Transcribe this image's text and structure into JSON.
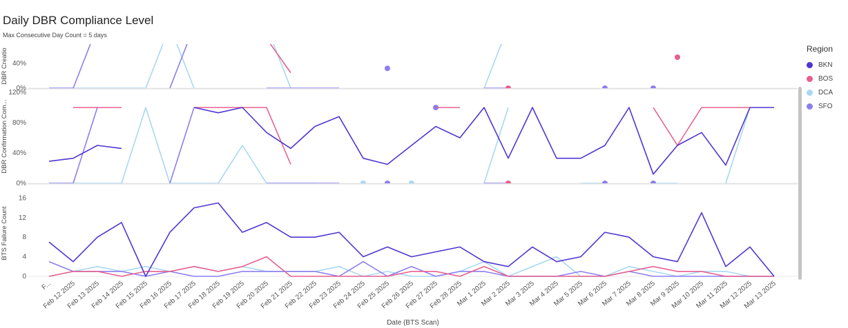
{
  "header": {
    "title": "Daily DBR Compliance Level",
    "subtitle": "Max Consecutive Day Count = 5 days"
  },
  "legend": {
    "title": "Region",
    "items": [
      {
        "label": "BKN",
        "color": "#4f35d2"
      },
      {
        "label": "BOS",
        "color": "#e75f8d"
      },
      {
        "label": "DCA",
        "color": "#a7d7f5"
      },
      {
        "label": "SFO",
        "color": "#8b7ef0"
      }
    ]
  },
  "x_axis": {
    "label": "Date (BTS Scan)",
    "ticks": [
      "F...",
      "Feb 12 2025",
      "Feb 13 2025",
      "Feb 14 2025",
      "Feb 15 2025",
      "Feb 16 2025",
      "Feb 17 2025",
      "Feb 18 2025",
      "Feb 19 2025",
      "Feb 20 2025",
      "Feb 21 2025",
      "Feb 22 2025",
      "Feb 23 2025",
      "Feb 24 2025",
      "Feb 25 2025",
      "Feb 26 2025",
      "Feb 27 2025",
      "Feb 28 2025",
      "Mar 1 2025",
      "Mar 2 2025",
      "Mar 3 2025",
      "Mar 4 2025",
      "Mar 5 2025",
      "Mar 6 2025",
      "Mar 7 2025",
      "Mar 8 2025",
      "Mar 9 2025",
      "Mar 10 2025",
      "Mar 11 2025",
      "Mar 12 2025",
      "Mar 13 2025"
    ]
  },
  "chart_data": [
    {
      "type": "line",
      "ylabel": "DBR Creatio",
      "yticks": [
        "0%",
        "40%"
      ],
      "ylim": [
        0,
        100
      ],
      "series": [
        {
          "name": "BKN",
          "values": [
            null,
            null,
            null,
            null,
            null,
            null,
            null,
            null,
            null,
            null,
            null,
            null,
            null,
            null,
            null,
            null,
            null,
            null,
            null,
            null,
            null,
            null,
            null,
            null,
            null,
            null,
            null,
            null,
            null,
            null,
            null
          ]
        },
        {
          "name": "BOS",
          "values": [
            null,
            null,
            null,
            null,
            null,
            null,
            null,
            null,
            null,
            80,
            25,
            null,
            null,
            null,
            null,
            null,
            null,
            null,
            null,
            0,
            null,
            null,
            null,
            null,
            null,
            null,
            50,
            null,
            null,
            null,
            null
          ]
        },
        {
          "name": "DCA",
          "values": [
            0,
            0,
            0,
            0,
            0,
            100,
            0,
            null,
            null,
            100,
            0,
            null,
            null,
            null,
            null,
            null,
            null,
            null,
            0,
            100,
            null,
            null,
            null,
            null,
            null,
            null,
            null,
            null,
            null,
            null,
            null
          ]
        },
        {
          "name": "SFO",
          "values": [
            0,
            0,
            100,
            null,
            null,
            0,
            100,
            null,
            null,
            0,
            0,
            0,
            0,
            null,
            32,
            null,
            null,
            null,
            0,
            0,
            null,
            null,
            null,
            0,
            null,
            0,
            null,
            null,
            null,
            null,
            null
          ]
        }
      ]
    },
    {
      "type": "line",
      "ylabel": "DBR Confirmation Com...",
      "yticks": [
        "0%",
        "40%",
        "80%",
        "120%"
      ],
      "ylim": [
        0,
        120
      ],
      "series": [
        {
          "name": "BKN",
          "values": [
            29,
            33,
            50,
            46,
            null,
            null,
            100,
            93,
            100,
            67,
            46,
            75,
            88,
            33,
            25,
            50,
            75,
            60,
            100,
            33,
            100,
            33,
            33,
            50,
            100,
            12,
            50,
            67,
            24,
            100,
            100
          ]
        },
        {
          "name": "BOS",
          "values": [
            null,
            100,
            100,
            100,
            null,
            null,
            100,
            100,
            100,
            100,
            25,
            null,
            null,
            null,
            null,
            null,
            100,
            100,
            null,
            0,
            null,
            null,
            null,
            null,
            null,
            100,
            50,
            100,
            100,
            100,
            null
          ]
        },
        {
          "name": "DCA",
          "values": [
            0,
            0,
            0,
            0,
            100,
            0,
            0,
            0,
            50,
            0,
            0,
            0,
            null,
            0,
            null,
            0,
            null,
            null,
            0,
            100,
            null,
            null,
            0,
            0,
            null,
            0,
            0,
            null,
            0,
            100,
            null
          ]
        },
        {
          "name": "SFO",
          "values": [
            0,
            0,
            100,
            null,
            null,
            0,
            100,
            null,
            null,
            0,
            0,
            0,
            0,
            null,
            0,
            null,
            100,
            null,
            0,
            0,
            null,
            null,
            null,
            0,
            null,
            0,
            null,
            null,
            null,
            null,
            null
          ]
        }
      ]
    },
    {
      "type": "line",
      "ylabel": "BTS Failure Count",
      "yticks": [
        "0",
        "4",
        "8",
        "12",
        "16"
      ],
      "ylim": [
        0,
        18
      ],
      "series": [
        {
          "name": "BKN",
          "values": [
            7,
            3,
            8,
            11,
            0,
            9,
            14,
            15,
            9,
            11,
            8,
            8,
            9,
            4,
            6,
            4,
            5,
            6,
            3,
            2,
            6,
            3,
            4,
            9,
            8,
            4,
            3,
            13,
            2,
            6,
            0
          ]
        },
        {
          "name": "BOS",
          "values": [
            0,
            1,
            1,
            0,
            1,
            1,
            2,
            1,
            2,
            4,
            0,
            0,
            0,
            0,
            0,
            1,
            1,
            0,
            2,
            0,
            0,
            0,
            0,
            0,
            1,
            2,
            1,
            1,
            0,
            0,
            0
          ]
        },
        {
          "name": "DCA",
          "values": [
            0,
            1,
            2,
            1,
            2,
            1,
            2,
            1,
            2,
            1,
            1,
            1,
            2,
            0,
            1,
            0,
            0,
            1,
            3,
            0,
            2,
            4,
            0,
            0,
            2,
            1,
            0,
            1,
            1,
            0,
            0
          ]
        },
        {
          "name": "SFO",
          "values": [
            3,
            1,
            1,
            1,
            0,
            1,
            0,
            0,
            1,
            1,
            1,
            1,
            0,
            3,
            0,
            2,
            0,
            1,
            1,
            0,
            0,
            0,
            1,
            0,
            1,
            0,
            0,
            0,
            0,
            0,
            0
          ]
        }
      ]
    }
  ]
}
